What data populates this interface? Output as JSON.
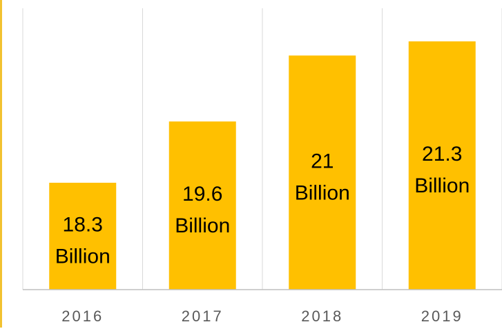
{
  "chart_data": {
    "type": "bar",
    "categories": [
      "2016",
      "2017",
      "2018",
      "2019"
    ],
    "values": [
      18.3,
      19.6,
      21,
      21.3
    ],
    "data_labels": [
      [
        "18.3",
        "Billion"
      ],
      [
        "19.6",
        "Billion"
      ],
      [
        "21",
        "Billion"
      ],
      [
        "21.3",
        "Billion"
      ]
    ],
    "title": "",
    "xlabel": "",
    "ylabel": "",
    "ylim": [
      17,
      22
    ],
    "grid": "vertical",
    "legend": "none",
    "colors": {
      "bar": "#FFC000",
      "left_border": "#F2C230",
      "gridline": "#D9D9D9",
      "axis_line": "#BFBFBF",
      "label_text": "#000000",
      "tick_text": "#595959"
    }
  }
}
